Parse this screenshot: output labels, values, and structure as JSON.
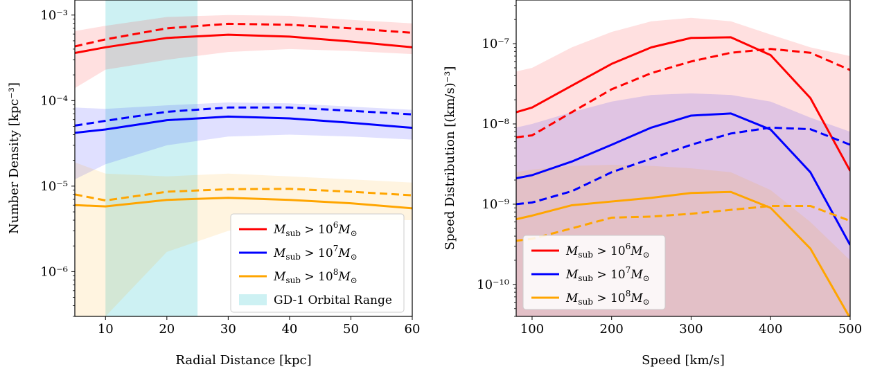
{
  "chart_data": [
    {
      "type": "line",
      "xlabel": "Radial Distance [kpc]",
      "ylabel": "Number Density [kpc⁻³]",
      "xlim": [
        5,
        60
      ],
      "ylim": [
        3e-07,
        0.0015
      ],
      "yscale": "log",
      "xticks": [
        10,
        20,
        30,
        40,
        50,
        60
      ],
      "yticks": [
        {
          "value": 0.001,
          "label": "10⁻³"
        },
        {
          "value": 0.0001,
          "label": "10⁻⁴"
        },
        {
          "value": 1e-05,
          "label": "10⁻⁵"
        },
        {
          "value": 1e-06,
          "label": "10⁻⁶"
        }
      ],
      "span": {
        "x0": 10,
        "x1": 25,
        "color": "#9be3e7",
        "label": "GD-1 Orbital Range"
      },
      "legend_position": "lower-right",
      "x": [
        5,
        10,
        20,
        30,
        40,
        50,
        60
      ],
      "series": [
        {
          "name": "M_sub > 10^6 M_⊙",
          "legend": {
            "prefix": "M",
            "sub": "sub",
            "mid": " > 10",
            "exp": "6",
            "suffix": "M",
            "sym": "⊙"
          },
          "color": "#ff0000",
          "solid": [
            0.00036,
            0.00042,
            0.00054,
            0.00059,
            0.00056,
            0.00049,
            0.00042
          ],
          "dashed": [
            0.00043,
            0.00052,
            0.0007,
            0.00079,
            0.00077,
            0.0007,
            0.00062
          ],
          "band_lo": [
            0.00014,
            0.00023,
            0.0003,
            0.00037,
            0.0004,
            0.00038,
            0.00035
          ],
          "band_hi": [
            0.00065,
            0.00075,
            0.00095,
            0.001,
            0.00098,
            0.00088,
            0.0008
          ]
        },
        {
          "name": "M_sub > 10^7 M_⊙",
          "legend": {
            "prefix": "M",
            "sub": "sub",
            "mid": " > 10",
            "exp": "7",
            "suffix": "M",
            "sym": "⊙"
          },
          "color": "#0000ff",
          "solid": [
            4.2e-05,
            4.6e-05,
            5.9e-05,
            6.5e-05,
            6.2e-05,
            5.5e-05,
            4.8e-05
          ],
          "dashed": [
            5.1e-05,
            5.8e-05,
            7.4e-05,
            8.3e-05,
            8.3e-05,
            7.6e-05,
            6.9e-05
          ],
          "band_lo": [
            1.2e-05,
            1.8e-05,
            3e-05,
            3.8e-05,
            4e-05,
            3.8e-05,
            3.5e-05
          ],
          "band_hi": [
            8.3e-05,
            8e-05,
            8.8e-05,
            9.5e-05,
            9.3e-05,
            8.5e-05,
            7.8e-05
          ]
        },
        {
          "name": "M_sub > 10^8 M_⊙",
          "legend": {
            "prefix": "M",
            "sub": "sub",
            "mid": " > 10",
            "exp": "8",
            "suffix": "M",
            "sym": "⊙"
          },
          "color": "#ffa500",
          "solid": [
            6e-06,
            5.8e-06,
            6.9e-06,
            7.3e-06,
            6.9e-06,
            6.3e-06,
            5.5e-06
          ],
          "dashed": [
            8e-06,
            6.8e-06,
            8.6e-06,
            9.2e-06,
            9.3e-06,
            8.6e-06,
            7.8e-06
          ],
          "band_lo": [
            3e-07,
            3e-07,
            1.7e-06,
            3e-06,
            4e-06,
            4e-06,
            4e-06
          ],
          "band_hi": [
            1.9e-05,
            1.4e-05,
            1.3e-05,
            1.4e-05,
            1.3e-05,
            1.2e-05,
            1.1e-05
          ]
        }
      ]
    },
    {
      "type": "line",
      "xlabel": "Speed [km/s]",
      "ylabel": "Speed Distribution [(km/s)⁻³]",
      "xlim": [
        80,
        500
      ],
      "ylim": [
        4e-11,
        3.5e-07
      ],
      "yscale": "log",
      "xticks": [
        100,
        200,
        300,
        400,
        500
      ],
      "yticks": [
        {
          "value": 1e-07,
          "label": "10⁻⁷"
        },
        {
          "value": 1e-08,
          "label": "10⁻⁸"
        },
        {
          "value": 1e-09,
          "label": "10⁻⁹"
        },
        {
          "value": 1e-10,
          "label": "10⁻¹⁰"
        }
      ],
      "legend_position": "lower-left",
      "x": [
        80,
        100,
        150,
        200,
        250,
        300,
        350,
        400,
        450,
        500
      ],
      "series": [
        {
          "name": "M_sub > 10^6 M_⊙",
          "legend": {
            "prefix": "M",
            "sub": "sub",
            "mid": " > 10",
            "exp": "6",
            "suffix": "M",
            "sym": "⊙"
          },
          "color": "#ff0000",
          "solid": [
            1.4e-08,
            1.6e-08,
            3e-08,
            5.6e-08,
            9e-08,
            1.18e-07,
            1.2e-07,
            7.2e-08,
            2.1e-08,
            2.6e-09
          ],
          "dashed": [
            6.8e-09,
            7.2e-09,
            1.4e-08,
            2.7e-08,
            4.3e-08,
            6e-08,
            7.7e-08,
            8.6e-08,
            7.7e-08,
            4.7e-08
          ],
          "band_lo": [
            4e-11,
            4e-11,
            4e-11,
            4e-11,
            4e-11,
            4e-11,
            4e-11,
            4e-11,
            4e-11,
            4e-11
          ],
          "band_hi": [
            4.5e-08,
            5e-08,
            9e-08,
            1.4e-07,
            1.9e-07,
            2.1e-07,
            1.9e-07,
            1.3e-07,
            9e-08,
            7e-08
          ]
        },
        {
          "name": "M_sub > 10^7 M_⊙",
          "legend": {
            "prefix": "M",
            "sub": "sub",
            "mid": " > 10",
            "exp": "7",
            "suffix": "M",
            "sym": "⊙"
          },
          "color": "#0000ff",
          "solid": [
            2.1e-09,
            2.3e-09,
            3.4e-09,
            5.5e-09,
            9e-09,
            1.27e-08,
            1.35e-08,
            8.5e-09,
            2.5e-09,
            3.1e-10
          ],
          "dashed": [
            1e-09,
            1.05e-09,
            1.45e-09,
            2.5e-09,
            3.7e-09,
            5.5e-09,
            7.6e-09,
            9e-09,
            8.6e-09,
            5.5e-09
          ],
          "band_lo": [
            4e-11,
            4e-11,
            4e-11,
            4e-11,
            4e-11,
            4e-11,
            4e-11,
            4e-11,
            4e-11,
            4e-11
          ],
          "band_hi": [
            9e-09,
            1e-08,
            1.4e-08,
            1.9e-08,
            2.3e-08,
            2.4e-08,
            2.3e-08,
            1.9e-08,
            1.2e-08,
            8e-09
          ]
        },
        {
          "name": "M_sub > 10^8 M_⊙",
          "legend": {
            "prefix": "M",
            "sub": "sub",
            "mid": " > 10",
            "exp": "8",
            "suffix": "M",
            "sym": "⊙"
          },
          "color": "#ffa500",
          "solid": [
            6.5e-10,
            7.2e-10,
            9.7e-10,
            1.08e-09,
            1.2e-09,
            1.38e-09,
            1.42e-09,
            9e-10,
            2.8e-10,
            3.8e-11
          ],
          "dashed": [
            3.5e-10,
            3.7e-10,
            5e-10,
            6.8e-10,
            7e-10,
            7.6e-10,
            8.5e-10,
            9.5e-10,
            9.5e-10,
            6.2e-10
          ],
          "band_lo": [
            4e-11,
            4e-11,
            4e-11,
            4e-11,
            4e-11,
            4e-11,
            4e-11,
            4e-11,
            4e-11,
            4e-11
          ],
          "band_hi": [
            2.5e-09,
            2.7e-09,
            3e-09,
            3.1e-09,
            3e-09,
            2.8e-09,
            2.5e-09,
            1.5e-09,
            6e-10,
            2e-10
          ]
        }
      ]
    }
  ]
}
